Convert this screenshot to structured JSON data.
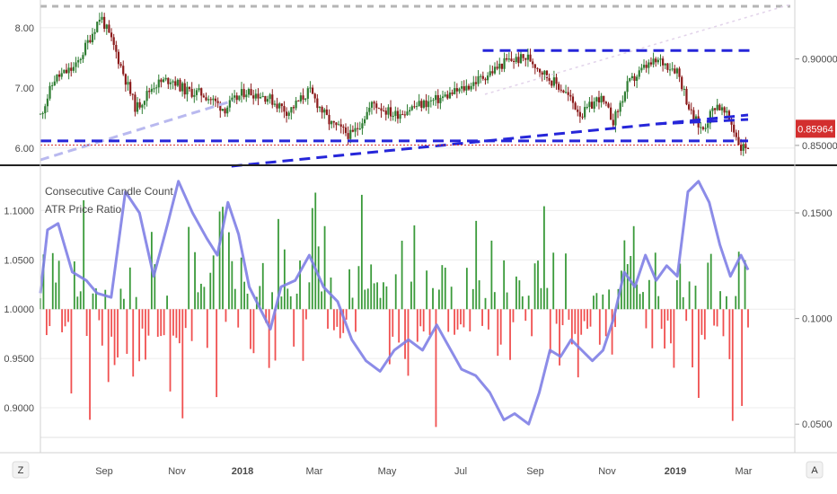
{
  "top_panel": {
    "left_axis_ticks": [
      "8.00",
      "7.00",
      "6.00"
    ],
    "right_axis_ticks": [
      "0.90000",
      "0.85000"
    ],
    "price_badge": "0.85964",
    "colors": {
      "up": "#2e7d32",
      "down": "#8b1a1a",
      "trend": "#2626d9",
      "price_line": "#d32f2f",
      "badge": "#d32f2f"
    }
  },
  "bottom_panel": {
    "labels": [
      "Consecutive Candle Count",
      "ATR Price Ratio"
    ],
    "left_axis_ticks": [
      "1.1000",
      "1.0500",
      "1.0000",
      "0.9500",
      "0.9000"
    ],
    "right_axis_ticks": [
      "0.1500",
      "0.1000",
      "0.0500"
    ],
    "colors": {
      "positive": "#3a9a3a",
      "negative": "#f05050",
      "line": "#7f7fe6"
    }
  },
  "x_axis": {
    "ticks": [
      "Sep",
      "Nov",
      "2018",
      "Mar",
      "May",
      "Jul",
      "Sep",
      "Nov",
      "2019",
      "Mar"
    ],
    "bold_ticks": [
      "2018",
      "2019"
    ]
  },
  "corner_buttons": {
    "left": "Z",
    "right": "A"
  },
  "chart_data": [
    {
      "type": "candlestick",
      "x_range": [
        "2017-07",
        "2019-03"
      ],
      "ylim_left": [
        5.7,
        8.4
      ],
      "ylim_right": [
        0.838,
        0.932
      ],
      "left_ticks": [
        8.0,
        7.0,
        6.0
      ],
      "right_ticks": [
        0.9,
        0.85
      ],
      "last_price": 0.85964,
      "close_path": [
        {
          "t": 0.0,
          "v": 6.55
        },
        {
          "t": 0.02,
          "v": 7.15
        },
        {
          "t": 0.05,
          "v": 7.35
        },
        {
          "t": 0.085,
          "v": 8.2
        },
        {
          "t": 0.105,
          "v": 7.65
        },
        {
          "t": 0.135,
          "v": 6.65
        },
        {
          "t": 0.16,
          "v": 7.05
        },
        {
          "t": 0.185,
          "v": 7.15
        },
        {
          "t": 0.205,
          "v": 6.95
        },
        {
          "t": 0.23,
          "v": 6.9
        },
        {
          "t": 0.26,
          "v": 6.65
        },
        {
          "t": 0.29,
          "v": 6.95
        },
        {
          "t": 0.32,
          "v": 6.85
        },
        {
          "t": 0.35,
          "v": 6.6
        },
        {
          "t": 0.38,
          "v": 6.95
        },
        {
          "t": 0.41,
          "v": 6.4
        },
        {
          "t": 0.44,
          "v": 6.2
        },
        {
          "t": 0.47,
          "v": 6.75
        },
        {
          "t": 0.5,
          "v": 6.55
        },
        {
          "t": 0.53,
          "v": 6.7
        },
        {
          "t": 0.56,
          "v": 6.8
        },
        {
          "t": 0.6,
          "v": 7.0
        },
        {
          "t": 0.635,
          "v": 7.25
        },
        {
          "t": 0.66,
          "v": 7.45
        },
        {
          "t": 0.69,
          "v": 7.5
        },
        {
          "t": 0.715,
          "v": 7.2
        },
        {
          "t": 0.74,
          "v": 6.95
        },
        {
          "t": 0.765,
          "v": 6.55
        },
        {
          "t": 0.79,
          "v": 6.85
        },
        {
          "t": 0.81,
          "v": 6.45
        },
        {
          "t": 0.83,
          "v": 7.05
        },
        {
          "t": 0.855,
          "v": 7.35
        },
        {
          "t": 0.875,
          "v": 7.45
        },
        {
          "t": 0.9,
          "v": 7.3
        },
        {
          "t": 0.92,
          "v": 6.55
        },
        {
          "t": 0.935,
          "v": 6.3
        },
        {
          "t": 0.955,
          "v": 6.75
        },
        {
          "t": 0.975,
          "v": 6.45
        },
        {
          "t": 0.99,
          "v": 6.0
        },
        {
          "t": 1.0,
          "v": 6.05
        }
      ],
      "lines": [
        {
          "name": "",
          "style": "dashed",
          "from": {
            "t": 0.0,
            "v": 6.12
          },
          "to": {
            "t": 1.0,
            "v": 6.12
          }
        },
        {
          "name": "",
          "style": "dashed",
          "from": {
            "t": 0.625,
            "v": 7.62
          },
          "to": {
            "t": 1.01,
            "v": 7.62
          }
        },
        {
          "name": "",
          "style": "dashed",
          "from": {
            "t": 0.27,
            "v": 5.7
          },
          "to": {
            "t": 1.0,
            "v": 6.55
          }
        },
        {
          "name": "",
          "style": "dotted",
          "from": {
            "t": 0.0,
            "v": 6.05
          },
          "to": {
            "t": 1.0,
            "v": 6.05
          }
        }
      ]
    },
    {
      "type": "bar",
      "name": "Consecutive Candle Count",
      "ylim": [
        0.87,
        1.135
      ],
      "baseline": 1.0,
      "seed": 7,
      "count": 230
    },
    {
      "type": "line",
      "name": "ATR Price Ratio",
      "ylim_right": [
        0.045,
        0.17
      ],
      "right_ticks": [
        0.15,
        0.1,
        0.05
      ],
      "points": [
        {
          "t": 0.0,
          "v": 0.112
        },
        {
          "t": 0.01,
          "v": 0.142
        },
        {
          "t": 0.025,
          "v": 0.145
        },
        {
          "t": 0.045,
          "v": 0.122
        },
        {
          "t": 0.065,
          "v": 0.118
        },
        {
          "t": 0.08,
          "v": 0.112
        },
        {
          "t": 0.1,
          "v": 0.11
        },
        {
          "t": 0.12,
          "v": 0.16
        },
        {
          "t": 0.14,
          "v": 0.15
        },
        {
          "t": 0.16,
          "v": 0.12
        },
        {
          "t": 0.18,
          "v": 0.145
        },
        {
          "t": 0.195,
          "v": 0.165
        },
        {
          "t": 0.215,
          "v": 0.15
        },
        {
          "t": 0.235,
          "v": 0.138
        },
        {
          "t": 0.25,
          "v": 0.13
        },
        {
          "t": 0.265,
          "v": 0.155
        },
        {
          "t": 0.28,
          "v": 0.14
        },
        {
          "t": 0.295,
          "v": 0.115
        },
        {
          "t": 0.31,
          "v": 0.105
        },
        {
          "t": 0.325,
          "v": 0.095
        },
        {
          "t": 0.34,
          "v": 0.115
        },
        {
          "t": 0.36,
          "v": 0.118
        },
        {
          "t": 0.38,
          "v": 0.13
        },
        {
          "t": 0.4,
          "v": 0.115
        },
        {
          "t": 0.42,
          "v": 0.108
        },
        {
          "t": 0.44,
          "v": 0.09
        },
        {
          "t": 0.46,
          "v": 0.08
        },
        {
          "t": 0.48,
          "v": 0.075
        },
        {
          "t": 0.5,
          "v": 0.085
        },
        {
          "t": 0.52,
          "v": 0.09
        },
        {
          "t": 0.54,
          "v": 0.085
        },
        {
          "t": 0.56,
          "v": 0.097
        },
        {
          "t": 0.575,
          "v": 0.088
        },
        {
          "t": 0.595,
          "v": 0.076
        },
        {
          "t": 0.615,
          "v": 0.073
        },
        {
          "t": 0.635,
          "v": 0.065
        },
        {
          "t": 0.655,
          "v": 0.052
        },
        {
          "t": 0.67,
          "v": 0.055
        },
        {
          "t": 0.69,
          "v": 0.05
        },
        {
          "t": 0.705,
          "v": 0.065
        },
        {
          "t": 0.72,
          "v": 0.085
        },
        {
          "t": 0.735,
          "v": 0.082
        },
        {
          "t": 0.75,
          "v": 0.09
        },
        {
          "t": 0.765,
          "v": 0.085
        },
        {
          "t": 0.78,
          "v": 0.08
        },
        {
          "t": 0.795,
          "v": 0.085
        },
        {
          "t": 0.81,
          "v": 0.1
        },
        {
          "t": 0.825,
          "v": 0.122
        },
        {
          "t": 0.84,
          "v": 0.115
        },
        {
          "t": 0.855,
          "v": 0.13
        },
        {
          "t": 0.87,
          "v": 0.118
        },
        {
          "t": 0.885,
          "v": 0.125
        },
        {
          "t": 0.9,
          "v": 0.12
        },
        {
          "t": 0.915,
          "v": 0.16
        },
        {
          "t": 0.93,
          "v": 0.165
        },
        {
          "t": 0.945,
          "v": 0.155
        },
        {
          "t": 0.96,
          "v": 0.135
        },
        {
          "t": 0.975,
          "v": 0.12
        },
        {
          "t": 0.99,
          "v": 0.13
        },
        {
          "t": 1.0,
          "v": 0.123
        }
      ]
    }
  ]
}
